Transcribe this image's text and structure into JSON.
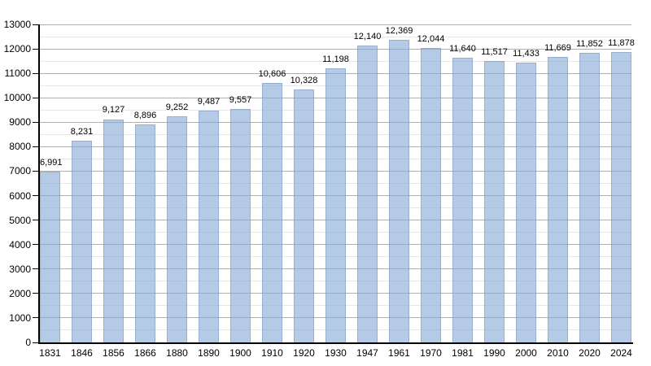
{
  "chart_data": {
    "type": "bar",
    "title": "",
    "xlabel": "",
    "ylabel": "",
    "categories": [
      "1831",
      "1846",
      "1856",
      "1866",
      "1880",
      "1890",
      "1900",
      "1910",
      "1920",
      "1930",
      "1947",
      "1961",
      "1970",
      "1981",
      "1990",
      "2000",
      "2010",
      "2020",
      "2024"
    ],
    "values": [
      6991,
      8231,
      9127,
      8896,
      9252,
      9487,
      9557,
      10606,
      10328,
      11198,
      12140,
      12369,
      12044,
      11640,
      11517,
      11433,
      11669,
      11852,
      11878
    ],
    "value_labels": [
      "6,991",
      "8,231",
      "9,127",
      "8,896",
      "9,252",
      "9,487",
      "9,557",
      "10,606",
      "10,328",
      "11,198",
      "12,140",
      "12,369",
      "12,044",
      "11,640",
      "11,517",
      "11,433",
      "11,669",
      "11,852",
      "11,878"
    ],
    "ylim": [
      0,
      13000
    ],
    "y_major_step": 1000,
    "y_minor_step": 500,
    "y_tick_labels": [
      "0",
      "1000",
      "2000",
      "3000",
      "4000",
      "5000",
      "6000",
      "7000",
      "8000",
      "9000",
      "10000",
      "11000",
      "12000",
      "13000"
    ],
    "grid": "major-and-minor-horizontal",
    "legend": "none",
    "colors": {
      "bar_fill": "rgba(135,170,212,0.62)",
      "bar_border": "rgba(96,130,170,0.35)",
      "grid_major": "#b0b0b0",
      "grid_minor": "#e7e7e7",
      "axis": "#000000",
      "text": "#000000",
      "background": "#ffffff"
    }
  }
}
